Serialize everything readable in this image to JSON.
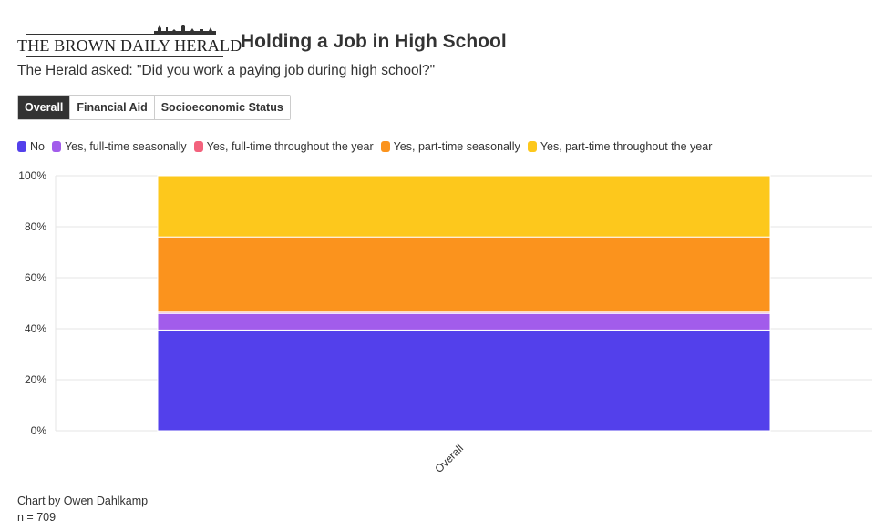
{
  "header": {
    "logo_text": "THE BROWN DAILY HERALD",
    "title": "Holding a Job in High School"
  },
  "subtitle": "The Herald asked: \"Did you work a paying job during high school?\"",
  "tabs": [
    {
      "label": "Overall",
      "active": true
    },
    {
      "label": "Financial Aid",
      "active": false
    },
    {
      "label": "Socioeconomic Status",
      "active": false
    }
  ],
  "chart_data": {
    "type": "bar",
    "stacked": true,
    "categories": [
      "Overall"
    ],
    "series": [
      {
        "name": "No",
        "color": "#5340eb",
        "values": [
          39.5
        ]
      },
      {
        "name": "Yes, full-time seasonally",
        "color": "#a25ceb",
        "values": [
          6.5
        ]
      },
      {
        "name": "Yes, full-time throughout the year",
        "color": "#f3627d",
        "values": [
          0.5
        ]
      },
      {
        "name": "Yes, part-time seasonally",
        "color": "#fb931d",
        "values": [
          29.5
        ]
      },
      {
        "name": "Yes, part-time throughout the year",
        "color": "#fdc81c",
        "values": [
          24
        ]
      }
    ],
    "y_ticks": [
      "0%",
      "20%",
      "40%",
      "60%",
      "80%",
      "100%"
    ],
    "ylim": [
      0,
      100
    ],
    "grid": true,
    "legend_position": "top-left"
  },
  "footer": {
    "credit": "Chart by Owen Dahlkamp",
    "sample": "n = 709"
  }
}
